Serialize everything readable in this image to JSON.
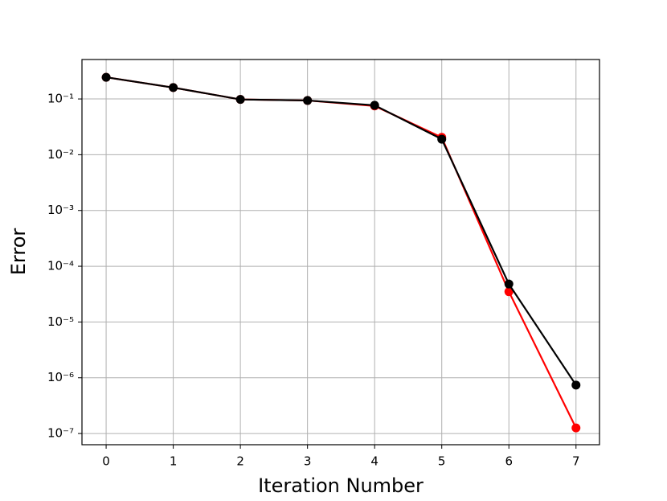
{
  "chart_data": {
    "type": "line",
    "x": [
      0,
      1,
      2,
      3,
      4,
      5,
      6,
      7
    ],
    "series": [
      {
        "color": "#ff0000",
        "values": [
          0.245,
          0.16,
          0.098,
          0.094,
          0.075,
          0.0205,
          3.5e-05,
          1.26e-07
        ]
      },
      {
        "color": "#000000",
        "values": [
          0.245,
          0.16,
          0.098,
          0.094,
          0.077,
          0.019,
          4.8e-05,
          7.4e-07
        ]
      }
    ],
    "x_label": "Iteration Number",
    "y_label": "Error",
    "xlim": [
      -0.36,
      7.35
    ],
    "xticks": [
      0,
      1,
      2,
      3,
      4,
      5,
      6,
      7
    ],
    "ylim": [
      6.3e-08,
      0.51
    ],
    "yticks": [
      {
        "value": 0.1,
        "label": "10⁻¹"
      },
      {
        "value": 0.01,
        "label": "10⁻²"
      },
      {
        "value": 0.001,
        "label": "10⁻³"
      },
      {
        "value": 0.0001,
        "label": "10⁻⁴"
      },
      {
        "value": 1e-05,
        "label": "10⁻⁵"
      },
      {
        "value": 1e-06,
        "label": "10⁻⁶"
      },
      {
        "value": 1e-07,
        "label": "10⁻⁷"
      }
    ],
    "y_scale": "log",
    "grid": true
  }
}
